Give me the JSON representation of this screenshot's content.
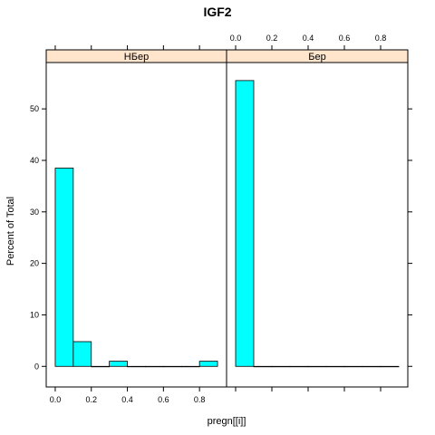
{
  "chart_data": {
    "type": "bar",
    "title": "IGF2",
    "xlabel": "pregn[[i]]",
    "ylabel": "Percent of Total",
    "xlim": [
      -0.05,
      0.95
    ],
    "ylim": [
      -4,
      59
    ],
    "x_ticks": [
      "0.0",
      "0.2",
      "0.4",
      "0.6",
      "0.8"
    ],
    "y_ticks": [
      "0",
      "10",
      "20",
      "30",
      "40",
      "50"
    ],
    "bin_width": 0.1,
    "bar_color": "#00FFFF",
    "strip_color": "#FFE5CC",
    "panels": [
      {
        "label": "НБер",
        "bins": [
          {
            "x0": 0.0,
            "x1": 0.1,
            "value": 38.5
          },
          {
            "x0": 0.1,
            "x1": 0.2,
            "value": 4.8
          },
          {
            "x0": 0.2,
            "x1": 0.3,
            "value": 0
          },
          {
            "x0": 0.3,
            "x1": 0.4,
            "value": 1.0
          },
          {
            "x0": 0.4,
            "x1": 0.5,
            "value": 0
          },
          {
            "x0": 0.5,
            "x1": 0.6,
            "value": 0
          },
          {
            "x0": 0.6,
            "x1": 0.7,
            "value": 0
          },
          {
            "x0": 0.7,
            "x1": 0.8,
            "value": 0
          },
          {
            "x0": 0.8,
            "x1": 0.9,
            "value": 1.0
          }
        ]
      },
      {
        "label": "Бер",
        "bins": [
          {
            "x0": 0.0,
            "x1": 0.1,
            "value": 55.5
          },
          {
            "x0": 0.1,
            "x1": 0.2,
            "value": 0
          },
          {
            "x0": 0.2,
            "x1": 0.3,
            "value": 0
          },
          {
            "x0": 0.3,
            "x1": 0.4,
            "value": 0
          },
          {
            "x0": 0.4,
            "x1": 0.5,
            "value": 0
          },
          {
            "x0": 0.5,
            "x1": 0.6,
            "value": 0
          },
          {
            "x0": 0.6,
            "x1": 0.7,
            "value": 0
          },
          {
            "x0": 0.7,
            "x1": 0.8,
            "value": 0
          },
          {
            "x0": 0.8,
            "x1": 0.9,
            "value": 0
          }
        ]
      }
    ]
  }
}
